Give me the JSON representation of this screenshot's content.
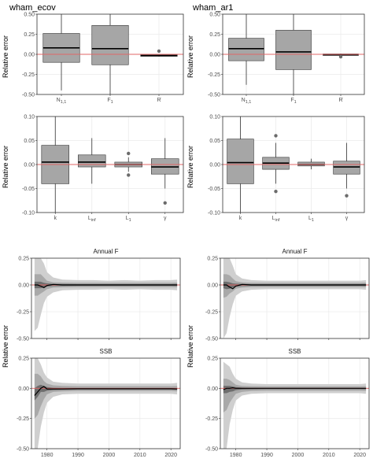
{
  "titles": {
    "left": "wham_ecov",
    "right": "wham_ar1"
  },
  "ylabel": "Relative error",
  "strip_labels": {
    "annual_f": "Annual F",
    "ssb": "SSB"
  },
  "colors": {
    "box_fill": "#a6a6a6",
    "ref_line": "#e06666",
    "panel_bg": "#ffffff",
    "grid": "#ebebeb",
    "ribbon_outer": "#cfcfcf",
    "ribbon_mid": "#a9a9a9",
    "ribbon_inner": "#6e6e6e",
    "median_line": "#000000"
  },
  "chart_data": [
    {
      "id": "ecov_top",
      "type": "box",
      "ylim": [
        -0.5,
        0.5
      ],
      "yticks": [
        0.5,
        0.25,
        0.0,
        -0.25,
        -0.5
      ],
      "ytick_labels": [
        "0.50",
        "0.25",
        "0.00",
        "-0.25",
        "-0.50"
      ],
      "categories": [
        "N1,1",
        "F1",
        "R"
      ],
      "boxes": [
        {
          "q1": -0.1,
          "med": 0.08,
          "q3": 0.26,
          "lo": -0.45,
          "hi": 0.55,
          "out": []
        },
        {
          "q1": -0.13,
          "med": 0.07,
          "q3": 0.36,
          "lo": -0.5,
          "hi": 0.55,
          "out": []
        },
        {
          "q1": -0.025,
          "med": -0.015,
          "q3": -0.005,
          "lo": -0.03,
          "hi": 0.0,
          "out": [
            0.04
          ]
        }
      ]
    },
    {
      "id": "ar1_top",
      "type": "box",
      "ylim": [
        -0.5,
        0.5
      ],
      "yticks": [
        0.5,
        0.25,
        0.0,
        -0.25,
        -0.5
      ],
      "ytick_labels": [
        "0.50",
        "0.25",
        "0.00",
        "-0.25",
        "-0.50"
      ],
      "categories": [
        "N1,1",
        "F1",
        "R"
      ],
      "boxes": [
        {
          "q1": -0.08,
          "med": 0.07,
          "q3": 0.2,
          "lo": -0.38,
          "hi": 0.55,
          "out": []
        },
        {
          "q1": -0.19,
          "med": 0.03,
          "q3": 0.3,
          "lo": -0.5,
          "hi": 0.55,
          "out": []
        },
        {
          "q1": -0.015,
          "med": -0.005,
          "q3": 0.005,
          "lo": -0.02,
          "hi": 0.01,
          "out": [
            -0.03
          ]
        }
      ]
    },
    {
      "id": "ecov_growth",
      "type": "box",
      "ylim": [
        -0.1,
        0.1
      ],
      "yticks": [
        0.1,
        0.05,
        0.0,
        -0.05,
        -0.1
      ],
      "ytick_labels": [
        "0.10",
        "0.05",
        "0.00",
        "-0.05",
        "-0.10"
      ],
      "categories": [
        "k",
        "Linf",
        "L1",
        "γ"
      ],
      "boxes": [
        {
          "q1": -0.04,
          "med": 0.005,
          "q3": 0.04,
          "lo": -0.12,
          "hi": 0.12,
          "out": []
        },
        {
          "q1": -0.005,
          "med": 0.005,
          "q3": 0.02,
          "lo": -0.04,
          "hi": 0.055,
          "out": []
        },
        {
          "q1": -0.005,
          "med": 0.0,
          "q3": 0.005,
          "lo": -0.015,
          "hi": 0.015,
          "out": [
            0.023,
            -0.022
          ]
        },
        {
          "q1": -0.02,
          "med": -0.005,
          "q3": 0.012,
          "lo": -0.05,
          "hi": 0.055,
          "out": [
            -0.08
          ]
        }
      ]
    },
    {
      "id": "ar1_growth",
      "type": "box",
      "ylim": [
        -0.1,
        0.1
      ],
      "yticks": [
        0.1,
        0.05,
        0.0,
        -0.05,
        -0.1
      ],
      "ytick_labels": [
        "0.10",
        "0.05",
        "0.00",
        "-0.05",
        "-0.10"
      ],
      "categories": [
        "k",
        "Linf",
        "L1",
        "γ"
      ],
      "boxes": [
        {
          "q1": -0.04,
          "med": 0.004,
          "q3": 0.053,
          "lo": -0.12,
          "hi": 0.12,
          "out": []
        },
        {
          "q1": -0.01,
          "med": 0.003,
          "q3": 0.015,
          "lo": -0.04,
          "hi": 0.045,
          "out": [
            0.06,
            -0.056
          ]
        },
        {
          "q1": -0.003,
          "med": 0.0,
          "q3": 0.005,
          "lo": -0.01,
          "hi": 0.012,
          "out": []
        },
        {
          "q1": -0.02,
          "med": -0.005,
          "q3": 0.007,
          "lo": -0.05,
          "hi": 0.045,
          "out": [
            -0.065
          ]
        }
      ]
    },
    {
      "id": "ecov_f",
      "type": "area",
      "strip": "Annual F",
      "ylim": [
        -0.5,
        0.25
      ],
      "yticks": [
        0.25,
        0.0,
        -0.25,
        -0.5
      ],
      "ytick_labels": [
        "0.25",
        "0.00",
        "-0.25",
        "-0.50"
      ],
      "xlim": [
        1975,
        2023
      ],
      "xticks": [
        1980,
        1990,
        2000,
        2010,
        2020
      ],
      "x": [
        1976,
        1977,
        1978,
        1979,
        1980,
        1982,
        1985,
        1990,
        1995,
        2000,
        2005,
        2010,
        2015,
        2020,
        2022
      ],
      "outer_hi": [
        0.3,
        0.3,
        0.3,
        0.2,
        0.12,
        0.07,
        0.05,
        0.045,
        0.045,
        0.04,
        0.045,
        0.04,
        0.045,
        0.045,
        0.05
      ],
      "outer_lo": [
        -0.43,
        -0.4,
        -0.28,
        -0.17,
        -0.11,
        -0.07,
        -0.05,
        -0.045,
        -0.045,
        -0.04,
        -0.045,
        -0.04,
        -0.045,
        -0.045,
        -0.05
      ],
      "mid_hi": [
        0.1,
        0.1,
        0.1,
        0.07,
        0.04,
        0.025,
        0.022,
        0.02,
        0.02,
        0.02,
        0.02,
        0.02,
        0.02,
        0.02,
        0.022
      ],
      "mid_lo": [
        -0.1,
        -0.1,
        -0.08,
        -0.06,
        -0.04,
        -0.025,
        -0.022,
        -0.02,
        -0.02,
        -0.02,
        -0.02,
        -0.02,
        -0.02,
        -0.02,
        -0.022
      ],
      "in_hi": [
        0.03,
        0.03,
        0.03,
        0.02,
        0.015,
        0.01,
        0.009,
        0.008,
        0.008,
        0.008,
        0.008,
        0.008,
        0.008,
        0.008,
        0.009
      ],
      "in_lo": [
        -0.03,
        -0.03,
        -0.03,
        -0.025,
        -0.015,
        -0.01,
        -0.009,
        -0.008,
        -0.008,
        -0.008,
        -0.008,
        -0.008,
        -0.008,
        -0.008,
        -0.009
      ],
      "median": [
        0.0,
        0.0,
        -0.01,
        -0.025,
        -0.005,
        0.005,
        0.0,
        0.0,
        0.0,
        0.0,
        0.0,
        0.0,
        0.0,
        0.0,
        0.0
      ]
    },
    {
      "id": "ar1_f",
      "type": "area",
      "strip": "Annual F",
      "ylim": [
        -0.5,
        0.25
      ],
      "yticks": [
        0.25,
        0.0,
        -0.25,
        -0.5
      ],
      "ytick_labels": [
        "0.25",
        "0.00",
        "-0.25",
        "-0.50"
      ],
      "xlim": [
        1975,
        2023
      ],
      "xticks": [
        1980,
        1990,
        2000,
        2010,
        2020
      ],
      "x": [
        1976,
        1977,
        1978,
        1979,
        1980,
        1982,
        1985,
        1990,
        1995,
        2000,
        2005,
        2010,
        2015,
        2020,
        2022
      ],
      "outer_hi": [
        0.3,
        0.3,
        0.28,
        0.18,
        0.1,
        0.06,
        0.045,
        0.04,
        0.04,
        0.04,
        0.04,
        0.04,
        0.04,
        0.04,
        0.045
      ],
      "outer_lo": [
        -0.5,
        -0.45,
        -0.3,
        -0.18,
        -0.1,
        -0.06,
        -0.045,
        -0.04,
        -0.04,
        -0.04,
        -0.04,
        -0.04,
        -0.04,
        -0.04,
        -0.045
      ],
      "mid_hi": [
        0.1,
        0.1,
        0.09,
        0.06,
        0.035,
        0.025,
        0.02,
        0.02,
        0.02,
        0.02,
        0.02,
        0.02,
        0.02,
        0.02,
        0.022
      ],
      "mid_lo": [
        -0.12,
        -0.11,
        -0.08,
        -0.06,
        -0.035,
        -0.025,
        -0.02,
        -0.02,
        -0.02,
        -0.02,
        -0.02,
        -0.02,
        -0.02,
        -0.02,
        -0.022
      ],
      "in_hi": [
        0.03,
        0.03,
        0.025,
        0.015,
        0.012,
        0.01,
        0.008,
        0.008,
        0.008,
        0.008,
        0.008,
        0.008,
        0.008,
        0.008,
        0.009
      ],
      "in_lo": [
        -0.03,
        -0.04,
        -0.035,
        -0.025,
        -0.015,
        -0.01,
        -0.008,
        -0.008,
        -0.008,
        -0.008,
        -0.008,
        -0.008,
        -0.008,
        -0.008,
        -0.009
      ],
      "median": [
        0.0,
        0.0,
        -0.02,
        -0.035,
        -0.01,
        0.005,
        0.0,
        0.0,
        0.0,
        0.0,
        0.0,
        0.0,
        0.0,
        0.0,
        0.0
      ]
    },
    {
      "id": "ecov_ssb",
      "type": "area",
      "strip": "SSB",
      "ylim": [
        -0.5,
        0.25
      ],
      "yticks": [
        0.25,
        0.0,
        -0.25,
        -0.5
      ],
      "ytick_labels": [
        "0.25",
        "0.00",
        "-0.25",
        "-0.50"
      ],
      "xlim": [
        1975,
        2023
      ],
      "xticks": [
        1980,
        1990,
        2000,
        2010,
        2020
      ],
      "xtick_labels": [
        "1980",
        "1990",
        "2000",
        "2010",
        "2020"
      ],
      "x": [
        1976,
        1977,
        1978,
        1979,
        1980,
        1982,
        1985,
        1990,
        1995,
        2000,
        2005,
        2010,
        2015,
        2020,
        2022
      ],
      "outer_hi": [
        0.25,
        0.3,
        0.2,
        0.13,
        0.09,
        0.055,
        0.045,
        0.04,
        0.04,
        0.04,
        0.04,
        0.04,
        0.04,
        0.04,
        0.045
      ],
      "outer_lo": [
        -0.55,
        -0.5,
        -0.32,
        -0.2,
        -0.12,
        -0.07,
        -0.05,
        -0.045,
        -0.045,
        -0.045,
        -0.045,
        -0.045,
        -0.045,
        -0.045,
        -0.05
      ],
      "mid_hi": [
        0.12,
        0.12,
        0.1,
        0.06,
        0.04,
        0.025,
        0.02,
        0.018,
        0.018,
        0.018,
        0.018,
        0.018,
        0.018,
        0.018,
        0.02
      ],
      "mid_lo": [
        -0.25,
        -0.22,
        -0.15,
        -0.09,
        -0.05,
        -0.03,
        -0.025,
        -0.022,
        -0.022,
        -0.022,
        -0.022,
        -0.022,
        -0.022,
        -0.022,
        -0.025
      ],
      "in_hi": [
        0.0,
        0.02,
        0.03,
        0.02,
        0.01,
        0.005,
        0.003,
        0.002,
        0.002,
        0.002,
        0.002,
        0.002,
        0.002,
        0.002,
        0.002
      ],
      "in_lo": [
        -0.1,
        -0.07,
        -0.03,
        -0.03,
        -0.02,
        -0.015,
        -0.012,
        -0.01,
        -0.01,
        -0.01,
        -0.01,
        -0.01,
        -0.01,
        -0.01,
        -0.012
      ],
      "median": [
        -0.06,
        -0.03,
        0.0,
        0.015,
        -0.005,
        -0.005,
        -0.005,
        -0.004,
        -0.004,
        -0.004,
        -0.004,
        -0.004,
        -0.004,
        -0.004,
        -0.005
      ]
    },
    {
      "id": "ar1_ssb",
      "type": "area",
      "strip": "SSB",
      "ylim": [
        -0.5,
        0.25
      ],
      "yticks": [
        0.25,
        0.0,
        -0.25,
        -0.5
      ],
      "ytick_labels": [
        "0.25",
        "0.00",
        "-0.25",
        "-0.50"
      ],
      "xlim": [
        1975,
        2023
      ],
      "xticks": [
        1980,
        1990,
        2000,
        2010,
        2020
      ],
      "xtick_labels": [
        "1980",
        "1990",
        "2000",
        "2010",
        "2020"
      ],
      "x": [
        1976,
        1977,
        1978,
        1979,
        1980,
        1982,
        1985,
        1990,
        1995,
        2000,
        2005,
        2010,
        2015,
        2020,
        2022
      ],
      "outer_hi": [
        0.22,
        0.2,
        0.18,
        0.12,
        0.08,
        0.05,
        0.04,
        0.035,
        0.035,
        0.035,
        0.035,
        0.035,
        0.035,
        0.035,
        0.04
      ],
      "outer_lo": [
        -0.55,
        -0.5,
        -0.3,
        -0.18,
        -0.1,
        -0.06,
        -0.045,
        -0.04,
        -0.04,
        -0.04,
        -0.04,
        -0.04,
        -0.04,
        -0.04,
        -0.045
      ],
      "mid_hi": [
        0.08,
        0.08,
        0.07,
        0.05,
        0.03,
        0.02,
        0.018,
        0.016,
        0.016,
        0.016,
        0.016,
        0.016,
        0.016,
        0.016,
        0.018
      ],
      "mid_lo": [
        -0.2,
        -0.18,
        -0.12,
        -0.08,
        -0.045,
        -0.03,
        -0.022,
        -0.02,
        -0.02,
        -0.02,
        -0.02,
        -0.02,
        -0.02,
        -0.02,
        -0.022
      ],
      "in_hi": [
        0.02,
        0.02,
        0.02,
        0.015,
        0.01,
        0.006,
        0.004,
        0.003,
        0.003,
        0.003,
        0.003,
        0.003,
        0.003,
        0.003,
        0.004
      ],
      "in_lo": [
        -0.04,
        -0.04,
        -0.03,
        -0.025,
        -0.015,
        -0.01,
        -0.008,
        -0.007,
        -0.007,
        -0.007,
        -0.007,
        -0.007,
        -0.007,
        -0.007,
        -0.008
      ],
      "median": [
        -0.01,
        0.0,
        0.0,
        0.005,
        0.0,
        0.0,
        0.0,
        0.0,
        0.0,
        0.0,
        0.0,
        0.0,
        0.0,
        0.0,
        0.0
      ]
    }
  ]
}
